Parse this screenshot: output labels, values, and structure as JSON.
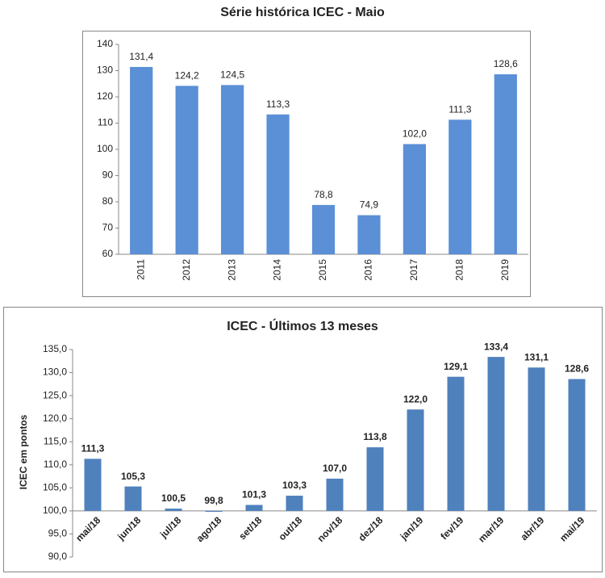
{
  "chart_data": [
    {
      "type": "bar",
      "title": "Série histórica ICEC - Maio",
      "categories": [
        "2011",
        "2012",
        "2013",
        "2014",
        "2015",
        "2016",
        "2017",
        "2018",
        "2019"
      ],
      "values": [
        131.4,
        124.2,
        124.5,
        113.3,
        78.8,
        74.9,
        102.0,
        111.3,
        128.6
      ],
      "value_labels": [
        "131,4",
        "124,2",
        "124,5",
        "113,3",
        "78,8",
        "74,9",
        "102,0",
        "111,3",
        "128,6"
      ],
      "color": "#5b8fd6",
      "ylim": [
        60,
        140
      ],
      "yticks": [
        60,
        70,
        80,
        90,
        100,
        110,
        120,
        130,
        140
      ],
      "grid": false
    },
    {
      "type": "bar",
      "title": "ICEC - Últimos 13 meses",
      "y_label": "ICEC em pontos",
      "categories": [
        "mai/18",
        "jun/18",
        "jul/18",
        "ago/18",
        "set/18",
        "out/18",
        "nov/18",
        "dez/18",
        "jan/19",
        "fev/19",
        "mar/19",
        "abr/19",
        "mai/19"
      ],
      "values": [
        111.3,
        105.3,
        100.5,
        99.8,
        101.3,
        103.3,
        107.0,
        113.8,
        122.0,
        129.1,
        133.4,
        131.1,
        128.6
      ],
      "value_labels": [
        "111,3",
        "105,3",
        "100,5",
        "99,8",
        "101,3",
        "103,3",
        "107,0",
        "113,8",
        "122,0",
        "129,1",
        "133,4",
        "131,1",
        "128,6"
      ],
      "color": "#4f81bd",
      "baseline": 100,
      "ylim": [
        90,
        135
      ],
      "yticks": [
        {
          "value": 90,
          "label": "90,0"
        },
        {
          "value": 95,
          "label": "95,0"
        },
        {
          "value": 100,
          "label": "100,0"
        },
        {
          "value": 105,
          "label": "105,0"
        },
        {
          "value": 110,
          "label": "110,0"
        },
        {
          "value": 115,
          "label": "115,0"
        },
        {
          "value": 120,
          "label": "120,0"
        },
        {
          "value": 125,
          "label": "125,0"
        },
        {
          "value": 130,
          "label": "130,0"
        },
        {
          "value": 135,
          "label": "135,0"
        }
      ],
      "grid": false
    }
  ]
}
